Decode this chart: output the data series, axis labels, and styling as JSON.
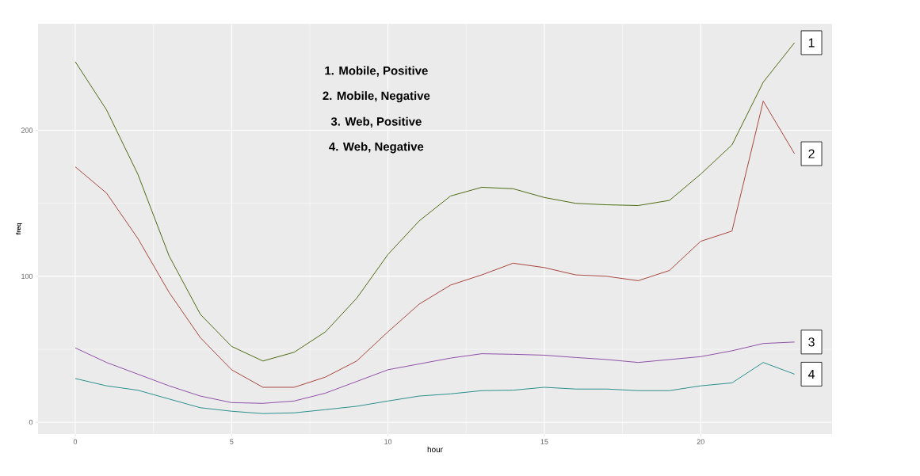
{
  "chart_data": {
    "type": "line",
    "xlabel": "hour",
    "ylabel": "freq",
    "x": [
      0,
      1,
      2,
      3,
      4,
      5,
      6,
      7,
      8,
      9,
      10,
      11,
      12,
      13,
      14,
      15,
      16,
      17,
      18,
      19,
      20,
      21,
      22,
      23
    ],
    "series": [
      {
        "name": "1",
        "color": "#4d6b12",
        "values": [
          247,
          214,
          170,
          114,
          74,
          52,
          42,
          48,
          62,
          85,
          115,
          138,
          155,
          161,
          160,
          154,
          150,
          149,
          148.5,
          152,
          170,
          190,
          233,
          260
        ]
      },
      {
        "name": "2",
        "color": "#a8463c",
        "values": [
          175,
          157,
          126,
          89,
          58,
          36,
          24,
          24,
          31,
          42,
          62,
          81,
          94,
          101,
          109,
          106,
          101,
          100,
          97,
          104,
          124,
          131,
          220,
          184
        ]
      },
      {
        "name": "3",
        "color": "#8f4fa8",
        "values": [
          51,
          41,
          33,
          25,
          18,
          13.5,
          13,
          14.6,
          20,
          28,
          36,
          40,
          44,
          47,
          46.6,
          46,
          44.4,
          43,
          41,
          43,
          45,
          49,
          54,
          55
        ]
      },
      {
        "name": "4",
        "color": "#2a8f8f",
        "values": [
          30,
          25,
          22,
          16,
          10,
          7.6,
          6,
          6.5,
          8.7,
          11,
          14.6,
          18,
          19.5,
          21.7,
          22,
          24,
          22.8,
          22.8,
          21.7,
          21.7,
          25,
          27,
          41,
          33
        ]
      }
    ],
    "annotations": [
      "1.    Mobile, Positive",
      "2.    Mobile, Negative",
      "3.    Web, Positive",
      "4.    Web, Negative"
    ],
    "xlim": [
      -1.19,
      24.2
    ],
    "ylim": [
      -8,
      273
    ],
    "xticks": [
      0,
      5,
      10,
      15,
      20
    ],
    "yticks": [
      0,
      100,
      200
    ],
    "grid": true,
    "marker": "none",
    "line_style": "solid"
  }
}
